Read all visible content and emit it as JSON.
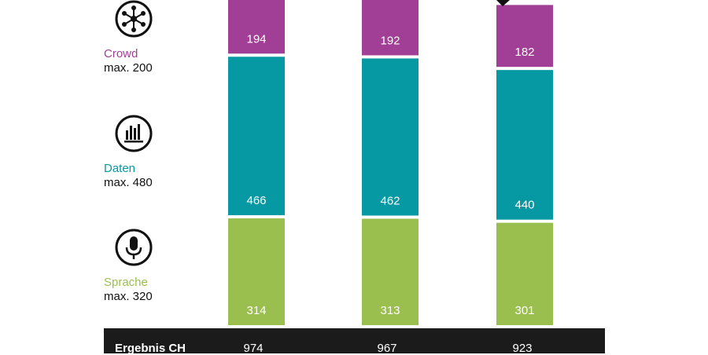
{
  "chart_data": {
    "type": "bar",
    "stacked": true,
    "categories": [
      "",
      "",
      ""
    ],
    "series": [
      {
        "name": "Sprache",
        "max_label": "max. 320",
        "color": "#9bbf4f",
        "values": [
          314,
          313,
          301
        ]
      },
      {
        "name": "Daten",
        "max_label": "max. 480",
        "color": "#0799a3",
        "values": [
          466,
          462,
          440
        ]
      },
      {
        "name": "Crowd",
        "max_label": "max. 200",
        "color": "#a13f97",
        "values": [
          194,
          192,
          182
        ]
      }
    ],
    "totals": {
      "label": "Ergebnis CH",
      "values": [
        974,
        967,
        923
      ]
    },
    "legend_icons": [
      "crowd-network-icon",
      "data-bars-icon",
      "microphone-icon"
    ]
  }
}
